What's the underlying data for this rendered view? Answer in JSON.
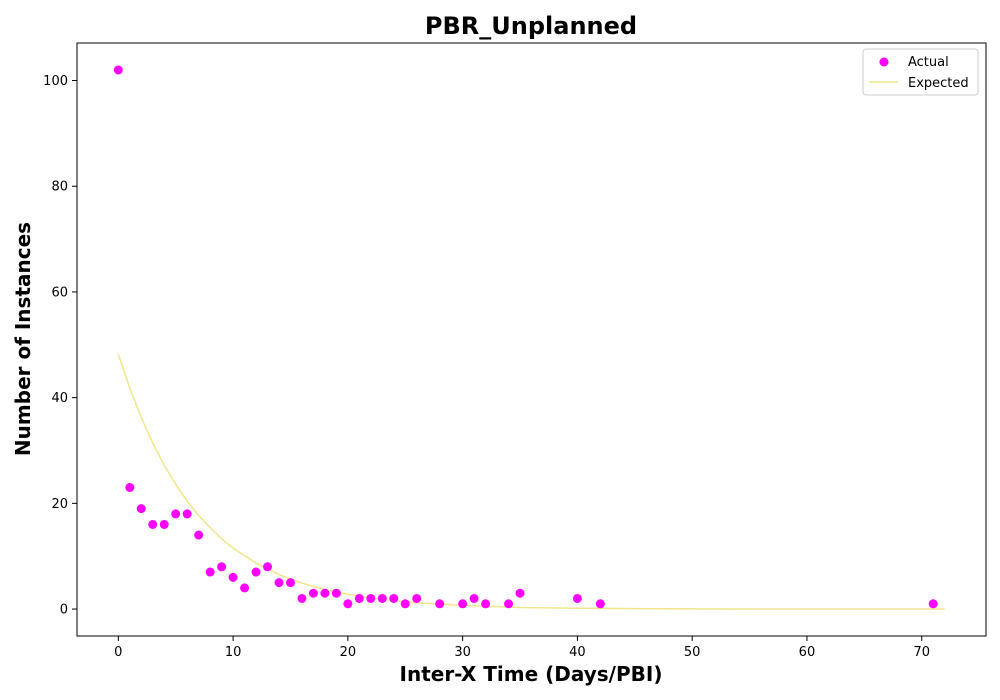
{
  "chart_data": {
    "type": "scatter",
    "title": "PBR_Unplanned",
    "xlabel": "Inter-X Time (Days/PBI)",
    "ylabel": "Number of Instances",
    "xlim": [
      -3.6,
      75.6
    ],
    "ylim": [
      -5.1,
      107.1
    ],
    "xticks": [
      0,
      10,
      20,
      30,
      40,
      50,
      60,
      70
    ],
    "yticks": [
      0,
      20,
      40,
      60,
      80,
      100
    ],
    "grid": false,
    "legend_position": "top-right",
    "series": [
      {
        "name": "Actual",
        "kind": "scatter",
        "color": "#ff00ff",
        "x": [
          0,
          1,
          2,
          3,
          4,
          5,
          6,
          7,
          8,
          9,
          10,
          11,
          12,
          13,
          14,
          15,
          16,
          17,
          18,
          19,
          20,
          21,
          22,
          23,
          24,
          25,
          26,
          28,
          30,
          31,
          32,
          34,
          35,
          40,
          42,
          71
        ],
        "y": [
          102,
          23,
          19,
          16,
          16,
          18,
          18,
          14,
          7,
          8,
          6,
          4,
          7,
          8,
          5,
          5,
          2,
          3,
          3,
          3,
          1,
          2,
          2,
          2,
          2,
          1,
          2,
          1,
          1,
          2,
          1,
          1,
          3,
          2,
          1,
          1
        ]
      },
      {
        "name": "Expected",
        "kind": "line",
        "color": "#f0e68c",
        "x": [
          0,
          1,
          2,
          3,
          4,
          5,
          6,
          7,
          8,
          9,
          10,
          12,
          14,
          16,
          18,
          20,
          22,
          24,
          26,
          28,
          30,
          35,
          40,
          45,
          50,
          55,
          60,
          65,
          70,
          72
        ],
        "y": [
          48.2,
          41.8,
          36.2,
          31.4,
          27.2,
          23.6,
          20.4,
          17.7,
          15.4,
          13.3,
          11.5,
          8.7,
          6.5,
          4.9,
          3.7,
          2.8,
          2.1,
          1.6,
          1.2,
          0.9,
          0.7,
          0.3,
          0.15,
          0.07,
          0.03,
          0.01,
          0.01,
          0.0,
          0.0,
          0.0
        ]
      }
    ]
  }
}
